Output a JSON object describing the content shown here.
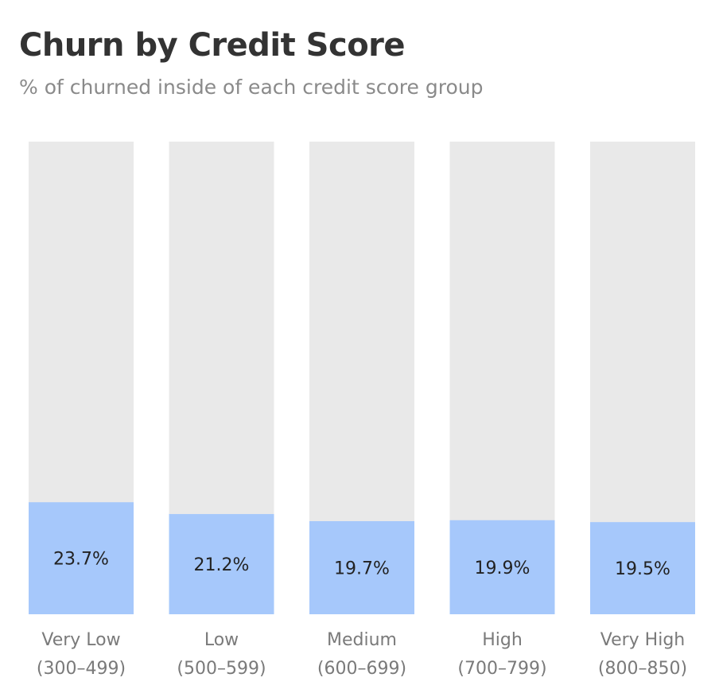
{
  "title": "Churn by Credit Score",
  "subtitle": "% of churned inside of each credit score group",
  "colors": {
    "background_bar": "#e9e9e9",
    "value_bar": "#a6c8fb",
    "title": "#333333",
    "subtitle": "#8a8a8a",
    "label": "#7a7a7a"
  },
  "chart_data": {
    "type": "bar",
    "title": "Churn by Credit Score",
    "subtitle": "% of churned inside of each credit score group",
    "stacked_to_100": true,
    "categories": [
      {
        "line1": "Very Low",
        "line2": "(300–499)"
      },
      {
        "line1": "Low",
        "line2": "(500–599)"
      },
      {
        "line1": "Medium",
        "line2": "(600–699)"
      },
      {
        "line1": "High",
        "line2": "(700–799)"
      },
      {
        "line1": "Very High",
        "line2": "(800–850)"
      }
    ],
    "series": [
      {
        "name": "",
        "values": [
          23.7,
          21.2,
          19.7,
          19.9,
          19.5
        ],
        "labels": [
          "23.7%",
          "21.2%",
          "19.7%",
          "19.9%",
          "19.5%"
        ]
      }
    ],
    "ylim": [
      0,
      100
    ],
    "grid": false,
    "xlabel": "",
    "ylabel": ""
  }
}
